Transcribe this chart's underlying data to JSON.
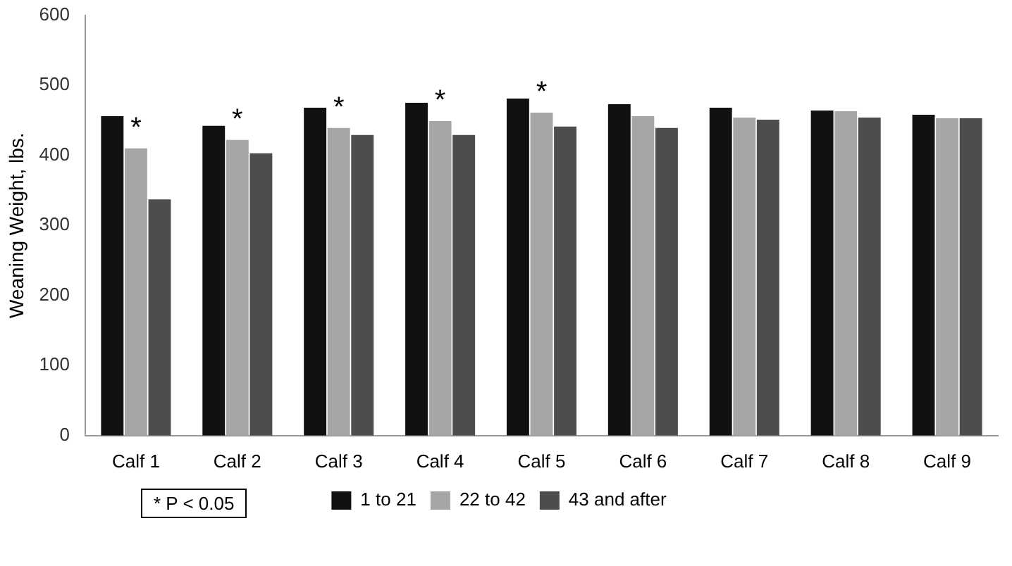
{
  "chart_data": {
    "type": "bar",
    "ylabel": "Weaning Weight, lbs.",
    "categories": [
      "Calf 1",
      "Calf 2",
      "Calf 3",
      "Calf 4",
      "Calf 5",
      "Calf 6",
      "Calf 7",
      "Calf 8",
      "Calf 9"
    ],
    "series": [
      {
        "name": "1 to 21",
        "color": "#111111",
        "values": [
          456,
          442,
          468,
          475,
          481,
          473,
          468,
          464,
          458
        ]
      },
      {
        "name": "22 to 42",
        "color": "#a6a6a6",
        "values": [
          410,
          422,
          439,
          449,
          461,
          456,
          454,
          463,
          453
        ]
      },
      {
        "name": "43 and after",
        "color": "#4d4d4d",
        "values": [
          337,
          403,
          429,
          429,
          441,
          439,
          451,
          454,
          453
        ]
      }
    ],
    "ylim": [
      0,
      600
    ],
    "yticks": [
      0,
      100,
      200,
      300,
      400,
      500,
      600
    ],
    "grid": false,
    "legend": "bottom",
    "annotations": [
      {
        "text": "*",
        "x": "Calf 1",
        "y": 410
      },
      {
        "text": "*",
        "x": "Calf 2",
        "y": 422
      },
      {
        "text": "*",
        "x": "Calf 3",
        "y": 439
      },
      {
        "text": "*",
        "x": "Calf 4",
        "y": 449
      },
      {
        "text": "*",
        "x": "Calf 5",
        "y": 461
      },
      "* P < 0.05"
    ]
  }
}
